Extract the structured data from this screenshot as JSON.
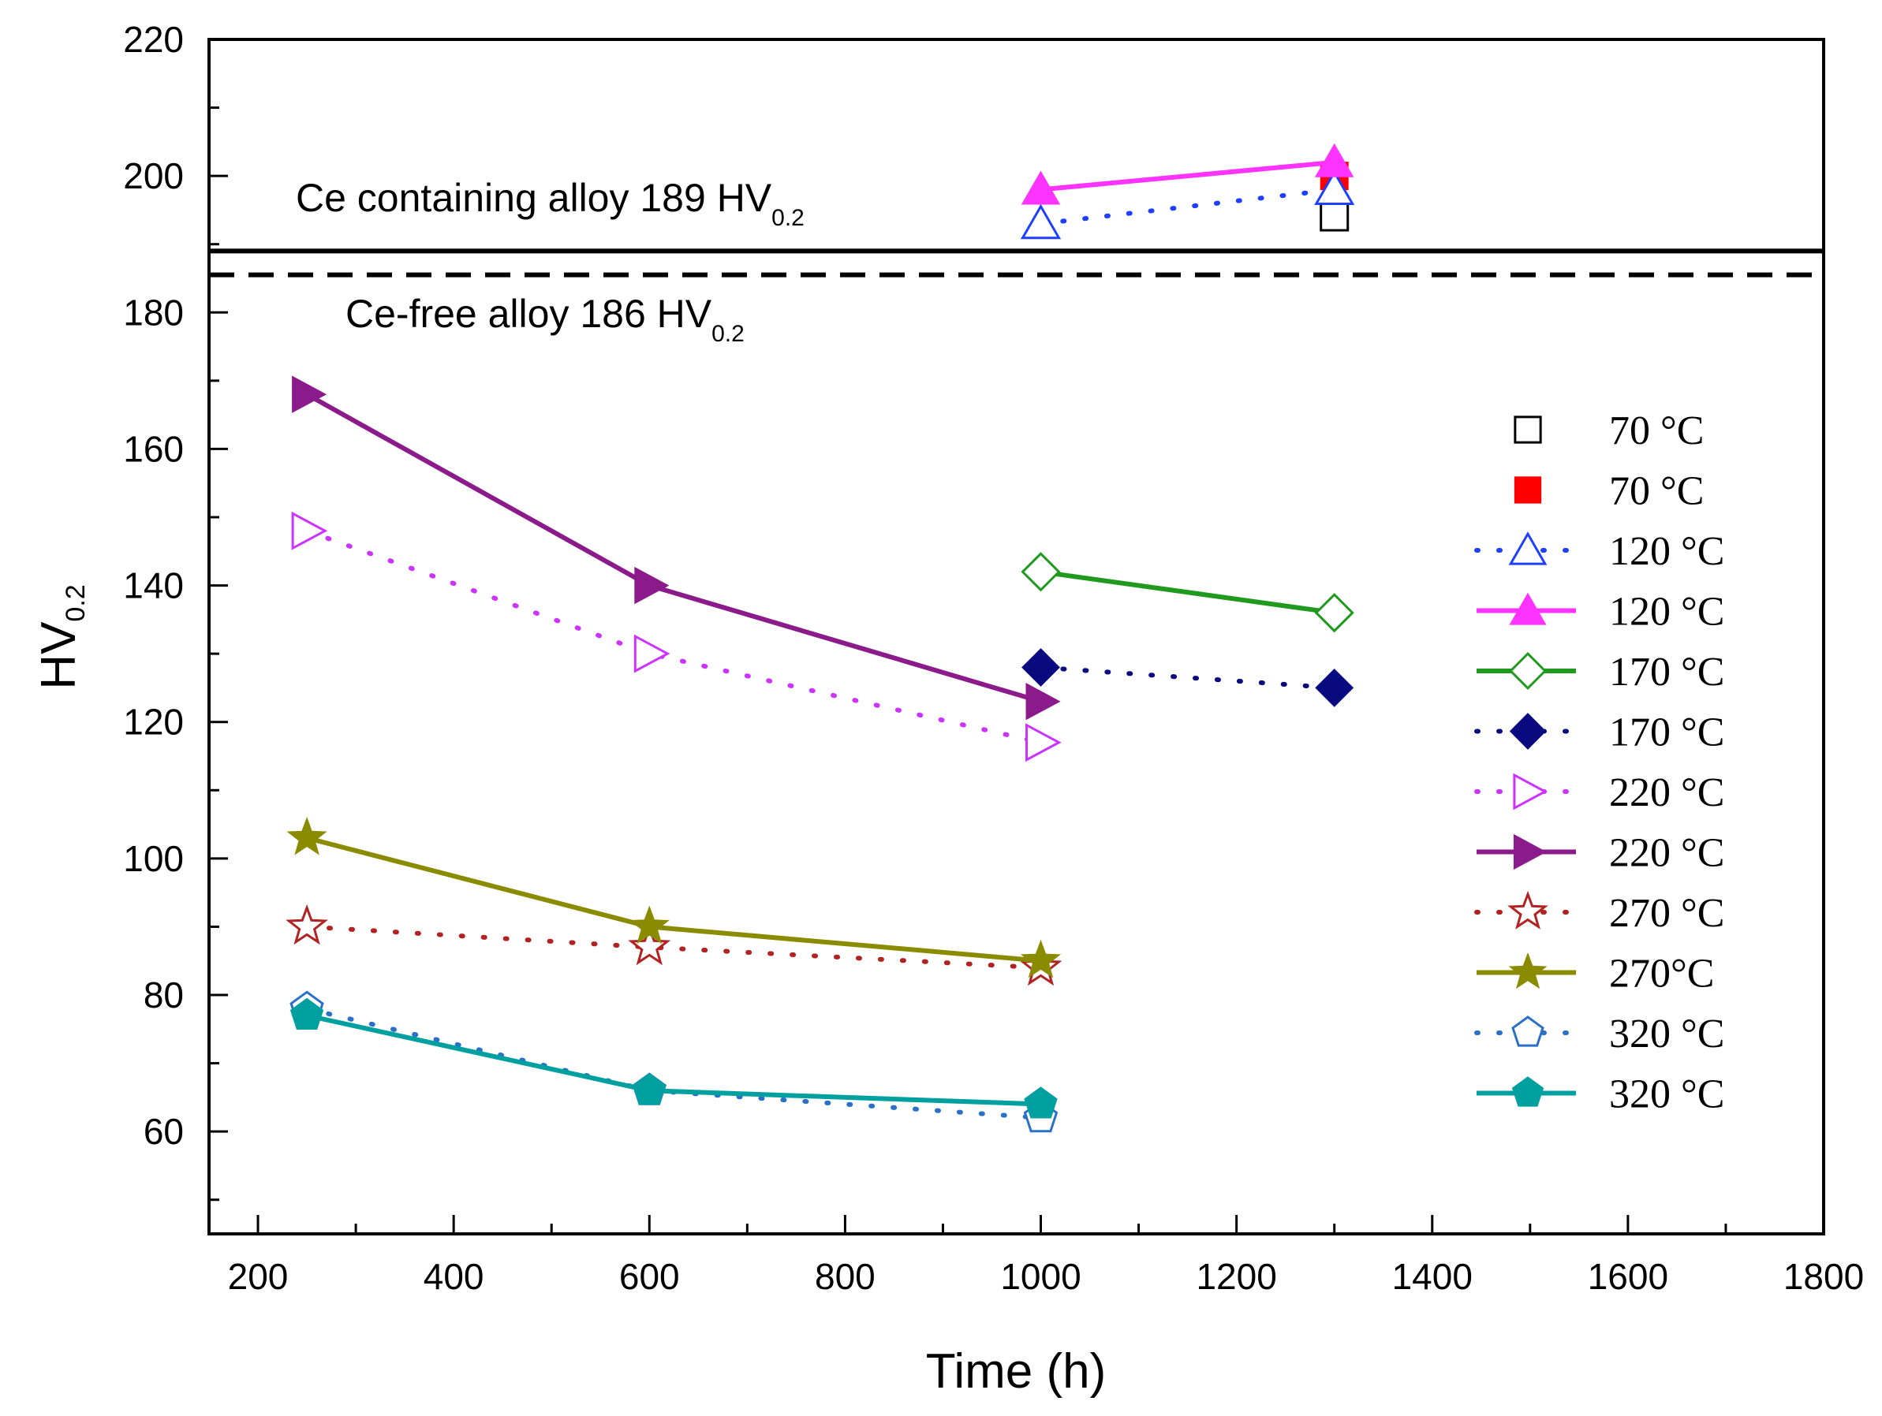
{
  "chart_data": {
    "type": "line",
    "xlabel": "Time (h)",
    "ylabel": "HV",
    "ylabel_sub": "0.2",
    "xlim": [
      150,
      1800
    ],
    "ylim": [
      45,
      220
    ],
    "xticks": [
      200,
      400,
      600,
      800,
      1000,
      1200,
      1400,
      1600,
      1800
    ],
    "yticks": [
      60,
      80,
      100,
      120,
      140,
      160,
      180,
      200,
      220
    ],
    "xminor_step": 100,
    "yminor_step": 10,
    "reference_lines": [
      {
        "name": "Ce containing alloy",
        "value": 189,
        "style": "solid",
        "label": "Ce containing alloy 189 HV",
        "label_sub": "0.2"
      },
      {
        "name": "Ce-free alloy",
        "value": 185.5,
        "style": "dashed",
        "label": "Ce-free alloy 186 HV",
        "label_sub": "0.2"
      }
    ],
    "series": [
      {
        "name": "70 °C",
        "color": "#000000",
        "marker": "square",
        "filled": false,
        "line": "none",
        "x": [
          1300
        ],
        "y": [
          194
        ]
      },
      {
        "name": "70 °C",
        "color": "#ff0000",
        "marker": "square",
        "filled": true,
        "line": "none",
        "x": [
          1300
        ],
        "y": [
          200
        ]
      },
      {
        "name": "120 °C",
        "color": "#1f3fff",
        "marker": "triangle-up",
        "filled": false,
        "line": "dotted",
        "x": [
          1000,
          1300
        ],
        "y": [
          193,
          198
        ]
      },
      {
        "name": "120 °C",
        "color": "#ff33ff",
        "marker": "triangle-up",
        "filled": true,
        "line": "solid",
        "x": [
          1000,
          1300
        ],
        "y": [
          198,
          202
        ]
      },
      {
        "name": "170 °C",
        "color": "#1f9a1f",
        "marker": "diamond",
        "filled": false,
        "line": "solid",
        "x": [
          1000,
          1300
        ],
        "y": [
          142,
          136
        ]
      },
      {
        "name": "170 °C",
        "color": "#0a0a80",
        "marker": "diamond",
        "filled": true,
        "line": "dotted",
        "x": [
          1000,
          1300
        ],
        "y": [
          128,
          125
        ]
      },
      {
        "name": "220 °C",
        "color": "#cc33ff",
        "marker": "triangle-right",
        "filled": false,
        "line": "dotted",
        "x": [
          250,
          600,
          1000
        ],
        "y": [
          148,
          130,
          117
        ]
      },
      {
        "name": "220 °C",
        "color": "#8b1a8b",
        "marker": "triangle-right",
        "filled": true,
        "line": "solid",
        "x": [
          250,
          600,
          1000
        ],
        "y": [
          168,
          140,
          123
        ]
      },
      {
        "name": "270 °C",
        "color": "#b22222",
        "marker": "star",
        "filled": false,
        "line": "dotted",
        "x": [
          250,
          600,
          1000
        ],
        "y": [
          90,
          87,
          84
        ]
      },
      {
        "name": "270°C",
        "color": "#8b8b00",
        "marker": "star",
        "filled": true,
        "line": "solid",
        "x": [
          250,
          600,
          1000
        ],
        "y": [
          103,
          90,
          85
        ]
      },
      {
        "name": "320 °C",
        "color": "#2a70c8",
        "marker": "pentagon",
        "filled": false,
        "line": "dotted",
        "x": [
          250,
          600,
          1000
        ],
        "y": [
          78,
          66,
          62
        ]
      },
      {
        "name": "320 °C",
        "color": "#00a0a0",
        "marker": "pentagon",
        "filled": true,
        "line": "solid",
        "x": [
          250,
          600,
          1000
        ],
        "y": [
          77,
          66,
          64
        ]
      }
    ]
  }
}
